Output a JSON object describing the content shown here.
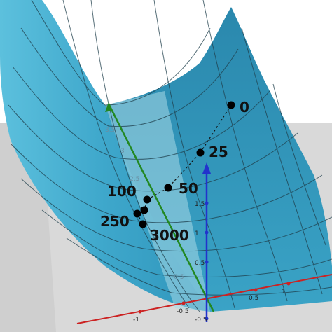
{
  "colors": {
    "surface_front": "#4fb6d6",
    "surface_back": "#2f92b7",
    "surface_light": "#7dcbe3",
    "mesh": "#1f3f4c",
    "ground": "#d8d8d8",
    "x_axis": "#cc2222",
    "y_axis": "#228822",
    "z_axis": "#2233cc",
    "point": "#000000"
  },
  "steps": [
    {
      "label": "0"
    },
    {
      "label": "25"
    },
    {
      "label": "50"
    },
    {
      "label": "100"
    },
    {
      "label": ""
    },
    {
      "label": "250"
    },
    {
      "label": "3000"
    }
  ],
  "ticks": {
    "x": [
      "-1",
      "-0.5",
      "0.5",
      "1"
    ],
    "y": [
      "3.5",
      "3",
      "2.5",
      "-0.5"
    ],
    "z": [
      "1.5",
      "1",
      "0.5",
      "-0.5"
    ]
  }
}
